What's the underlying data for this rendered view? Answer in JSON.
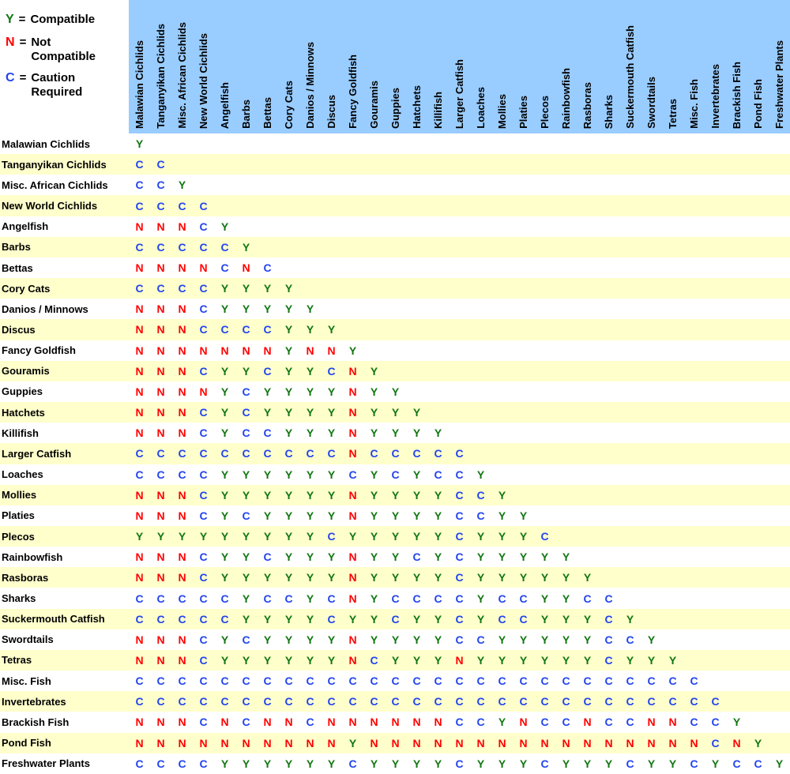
{
  "legend": {
    "items": [
      {
        "symbol": "Y",
        "eq": "=",
        "lines": [
          "Compatible"
        ],
        "color_key": "Y"
      },
      {
        "symbol": "N",
        "eq": "=",
        "lines": [
          "Not",
          "Compatible"
        ],
        "color_key": "N"
      },
      {
        "symbol": "C",
        "eq": "=",
        "lines": [
          "Caution",
          "Required"
        ],
        "color_key": "C"
      }
    ]
  },
  "colors": {
    "header_bg": "#99CCFF",
    "row_base": "#FFFFFF",
    "row_alt": "#FFFFCC",
    "Y": "#117711",
    "N": "#FF0000",
    "C": "#2244EE",
    "text": "#000000"
  },
  "chart_data": {
    "type": "heatmap",
    "legend": {
      "Y": "Compatible",
      "N": "Not Compatible",
      "C": "Caution Required"
    },
    "species": [
      "Malawian Cichlids",
      "Tanganyikan Cichlids",
      "Misc. African Cichlids",
      "New World Cichlids",
      "Angelfish",
      "Barbs",
      "Bettas",
      "Cory Cats",
      "Danios / Minnows",
      "Discus",
      "Fancy Goldfish",
      "Gouramis",
      "Guppies",
      "Hatchets",
      "Killifish",
      "Larger Catfish",
      "Loaches",
      "Mollies",
      "Platies",
      "Plecos",
      "Rainbowfish",
      "Rasboras",
      "Sharks",
      "Suckermouth Catfish",
      "Swordtails",
      "Tetras",
      "Misc. Fish",
      "Invertebrates",
      "Brackish Fish",
      "Pond Fish",
      "Freshwater Plants"
    ],
    "matrix": [
      "Y",
      "CC",
      "CCY",
      "CCCC",
      "NNNCY",
      "CCCCCY",
      "NNNNCNC",
      "CCCCYYYY",
      "NNNCYYYYY",
      "NNNCCCCYYY",
      "NNNNNNNYNNY",
      "NNNCYYCYYCNY",
      "NNNNYCYYYYNYY",
      "NNNCYCYYYYNYYY",
      "NNNCYCCYYYNYYYY",
      "CCCCCCCCCCNCCCCC",
      "CCCCYYYYYYCYCYCCY",
      "NNNCYYYYYYNYYYYCCY",
      "NNNCYCYYYYNYYYYCCYY",
      "YYYYYYYYYCYYYYYCYYYC",
      "NNNCYYCYYYNYYCYCYYYYY",
      "NNNCYYYYYYNYYYYCYYYYYY",
      "CCCCCYCCYCNYCCCCYCCYYCC",
      "CCCCCYYYYCYYCYYCYCCYYYCY",
      "NNNCYCYYYYNYYYYCCYYYYYCCY",
      "NNNCYYYYYYNCYYYNYYYYYYCYYY",
      "CCCCCCCCCCCCCCCCCCCCCCCCCCC",
      "CCCCCCCCCCCCCCCCCCCCCCCCCCCC",
      "NNNCNCNNCNNNNNNCCYNCCNCCNNCCY",
      "NNNNNNNNNNYNNNNNNNNNNNNNNNNCNY",
      "CCCCYYYYYYCYYYYCYYYCYYYCYYCYCCY"
    ]
  }
}
